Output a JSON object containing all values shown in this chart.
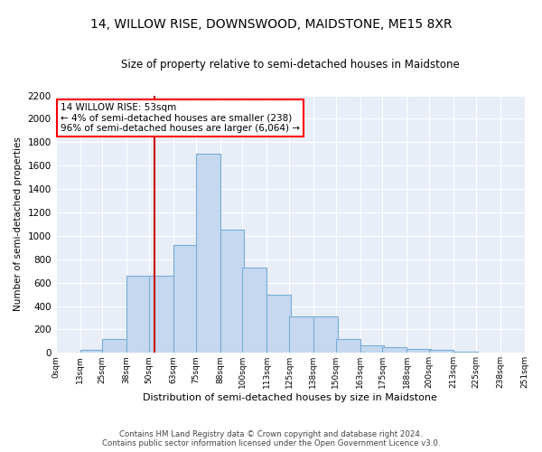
{
  "title": "14, WILLOW RISE, DOWNSWOOD, MAIDSTONE, ME15 8XR",
  "subtitle": "Size of property relative to semi-detached houses in Maidstone",
  "xlabel": "Distribution of semi-detached houses by size in Maidstone",
  "ylabel": "Number of semi-detached properties",
  "footer_line1": "Contains HM Land Registry data © Crown copyright and database right 2024.",
  "footer_line2": "Contains public sector information licensed under the Open Government Licence v3.0.",
  "property_size": 53,
  "property_label": "14 WILLOW RISE: 53sqm",
  "annotation_line1": "← 4% of semi-detached houses are smaller (238)",
  "annotation_line2": "96% of semi-detached houses are larger (6,064) →",
  "bar_color": "#c5d8f0",
  "bar_edge_color": "#7aadd4",
  "vline_color": "#cc0000",
  "background_color": "#e8eef8",
  "bins_left": [
    0,
    13,
    25,
    38,
    50,
    63,
    75,
    88,
    100,
    113,
    125,
    138,
    150,
    163,
    175,
    188,
    200,
    213,
    225,
    238
  ],
  "bin_width": 13,
  "counts": [
    4,
    22,
    118,
    660,
    660,
    920,
    1700,
    1050,
    730,
    500,
    310,
    310,
    115,
    65,
    50,
    35,
    25,
    10,
    3,
    1
  ],
  "ylim": [
    0,
    2200
  ],
  "yticks": [
    0,
    200,
    400,
    600,
    800,
    1000,
    1200,
    1400,
    1600,
    1800,
    2000,
    2200
  ]
}
